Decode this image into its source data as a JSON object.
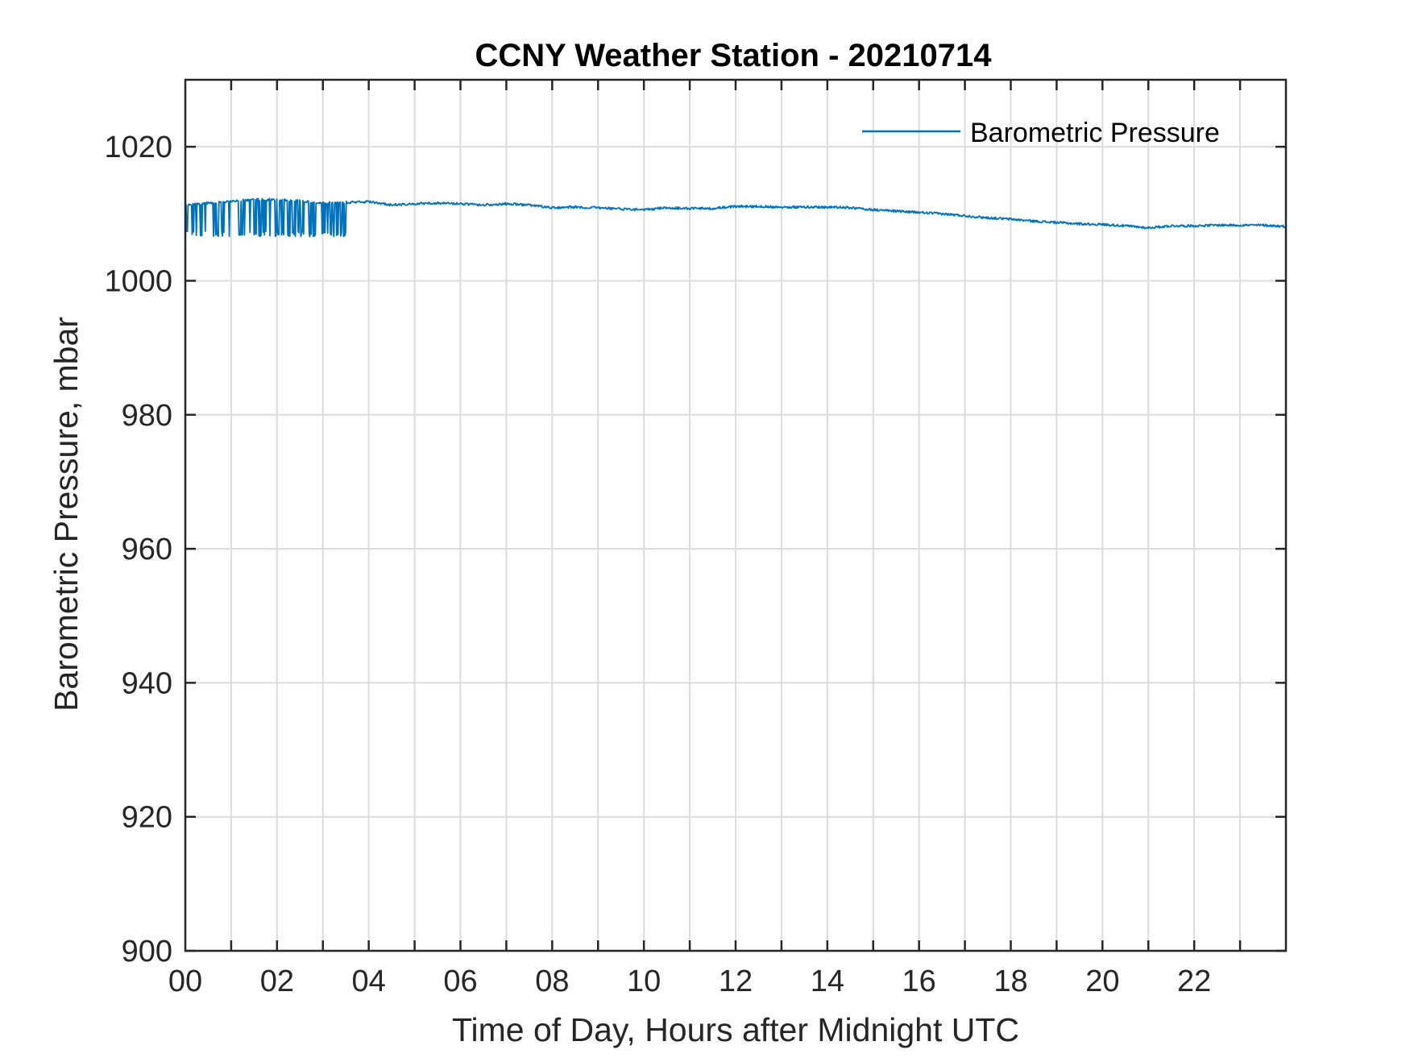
{
  "chart_data": {
    "type": "line",
    "title": "CCNY Weather Station - 20210714",
    "xlabel": "Time of Day, Hours after Midnight UTC",
    "ylabel": "Barometric Pressure, mbar",
    "xlim": [
      0,
      24
    ],
    "ylim": [
      900,
      1030
    ],
    "x_ticks": [
      0,
      2,
      4,
      6,
      8,
      10,
      12,
      14,
      16,
      18,
      20,
      22
    ],
    "x_tick_labels": [
      "00",
      "02",
      "04",
      "06",
      "08",
      "10",
      "12",
      "14",
      "16",
      "18",
      "20",
      "22"
    ],
    "x_minor_grid_step": 1,
    "y_ticks": [
      900,
      920,
      940,
      960,
      980,
      1000,
      1020
    ],
    "y_tick_labels": [
      "900",
      "920",
      "940",
      "960",
      "980",
      "1000",
      "1020"
    ],
    "grid": true,
    "legend_position": "top-right",
    "series": [
      {
        "name": "Barometric Pressure",
        "color": "#0072BD",
        "x": [
          0.0,
          0.5,
          1.0,
          1.5,
          2.0,
          2.5,
          3.0,
          3.5,
          4.0,
          4.5,
          5.0,
          5.5,
          6.0,
          6.5,
          7.0,
          7.5,
          8.0,
          8.5,
          9.0,
          9.5,
          10.0,
          10.5,
          11.0,
          11.5,
          12.0,
          12.5,
          13.0,
          13.5,
          14.0,
          14.5,
          15.0,
          15.5,
          16.0,
          16.5,
          17.0,
          17.5,
          18.0,
          18.5,
          19.0,
          19.5,
          20.0,
          20.5,
          21.0,
          21.5,
          22.0,
          22.5,
          23.0,
          23.5,
          24.0
        ],
        "values": [
          1011.3,
          1011.6,
          1011.9,
          1012.1,
          1012.1,
          1011.9,
          1011.6,
          1011.7,
          1011.8,
          1011.3,
          1011.5,
          1011.6,
          1011.5,
          1011.3,
          1011.5,
          1011.3,
          1010.9,
          1011.0,
          1010.9,
          1010.7,
          1010.6,
          1010.9,
          1010.8,
          1010.8,
          1011.1,
          1011.1,
          1011.0,
          1011.0,
          1011.0,
          1010.9,
          1010.6,
          1010.4,
          1010.2,
          1010.0,
          1009.7,
          1009.4,
          1009.2,
          1008.9,
          1008.7,
          1008.5,
          1008.4,
          1008.2,
          1007.9,
          1008.2,
          1008.2,
          1008.3,
          1008.3,
          1008.3,
          1008.1
        ],
        "dropout_window": [
          0.0,
          3.5
        ],
        "dropout_low": 1007.0
      }
    ]
  }
}
